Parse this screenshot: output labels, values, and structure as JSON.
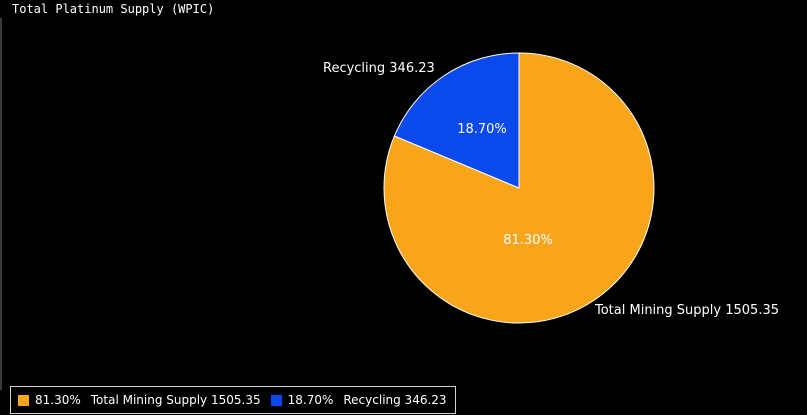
{
  "title": "Total Platinum Supply (WPIC)",
  "chart_data": {
    "type": "pie",
    "title": "Total Platinum Supply (WPIC)",
    "slices": [
      {
        "name": "Total Mining Supply",
        "value": 1505.35,
        "percent": 81.3,
        "percent_label": "81.30%",
        "outer_label": "Total Mining Supply 1505.35",
        "color": "#f8a51b"
      },
      {
        "name": "Recycling",
        "value": 346.23,
        "percent": 18.7,
        "percent_label": "18.70%",
        "outer_label": "Recycling 346.23",
        "color": "#0a4aec"
      }
    ],
    "legend_position": "bottom-left"
  },
  "legend": {
    "items": [
      {
        "pct": "81.30%",
        "label": "Total Mining Supply 1505.35",
        "color": "#f8a51b"
      },
      {
        "pct": "18.70%",
        "label": "Recycling 346.23",
        "color": "#0a4aec"
      }
    ]
  }
}
